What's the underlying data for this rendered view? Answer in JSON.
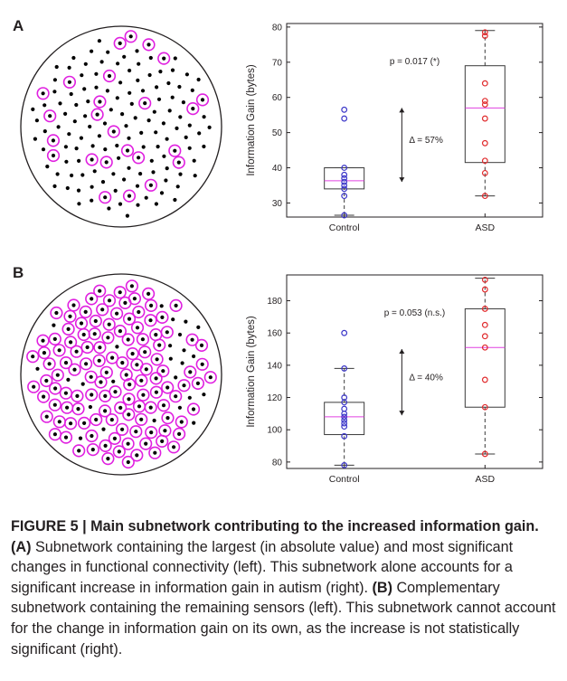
{
  "panels": [
    {
      "letter": "A",
      "chart_data": {
        "type": "box",
        "title": "",
        "xlabel": "",
        "ylabel": "Information Gain (bytes)",
        "ylim": [
          26,
          81
        ],
        "yticks": [
          30,
          40,
          50,
          60,
          70,
          80
        ],
        "categories": [
          "Control",
          "ASD"
        ],
        "colors": {
          "Control": "#3a35c8",
          "ASD": "#e0292b",
          "median": "#e040e0",
          "box": "#3a3a3a"
        },
        "boxes": [
          {
            "group": "Control",
            "whisker_low": 26.5,
            "q1": 34,
            "median": 36.3,
            "q3": 40,
            "whisker_high": 40,
            "points": [
              26.5,
              32,
              34,
              35,
              36,
              37,
              38,
              40,
              54,
              56.5
            ]
          },
          {
            "group": "ASD",
            "whisker_low": 32,
            "q1": 41.5,
            "median": 57,
            "q3": 69,
            "whisker_high": 79,
            "points": [
              32,
              38.5,
              42,
              47,
              54,
              58,
              59,
              64,
              77.5,
              78.5
            ]
          }
        ],
        "annotations": {
          "pvalue": "p = 0.017 (*)",
          "delta": "Δ = 57%",
          "delta_range": [
            36,
            57
          ]
        }
      },
      "network": {
        "highlighted_sensor_count": 30,
        "total_sensor_count": 150
      }
    },
    {
      "letter": "B",
      "chart_data": {
        "type": "box",
        "title": "",
        "xlabel": "",
        "ylabel": "Information Gain (bytes)",
        "ylim": [
          76,
          196
        ],
        "yticks": [
          80,
          100,
          120,
          140,
          160,
          180
        ],
        "categories": [
          "Control",
          "ASD"
        ],
        "colors": {
          "Control": "#3a35c8",
          "ASD": "#e0292b",
          "median": "#e040e0",
          "box": "#3a3a3a"
        },
        "boxes": [
          {
            "group": "Control",
            "whisker_low": 78,
            "q1": 97,
            "median": 108,
            "q3": 117,
            "whisker_high": 138,
            "points": [
              78,
              96,
              102,
              104,
              106,
              108,
              110,
              113,
              117,
              120,
              138,
              160
            ]
          },
          {
            "group": "ASD",
            "whisker_low": 85,
            "q1": 114,
            "median": 151,
            "q3": 175,
            "whisker_high": 194,
            "points": [
              85,
              114,
              131,
              151,
              158,
              165,
              175,
              187,
              193
            ]
          }
        ],
        "annotations": {
          "pvalue": "p = 0.053 (n.s.)",
          "delta": "Δ = 40%",
          "delta_range": [
            109,
            150
          ]
        }
      },
      "network": {
        "highlighted_sensor_count": 120,
        "total_sensor_count": 150
      }
    }
  ],
  "caption": {
    "title": "FIGURE 5 | Main subnetwork contributing to the increased information gain.",
    "a_label": "(A)",
    "a_text": "Subnetwork containing the largest (in absolute value) and most significant changes in functional connectivity (left). This subnetwork alone accounts for a significant increase in information gain in autism (right).",
    "b_label": "(B)",
    "b_text": "Complementary subnetwork containing the remaining sensors (left). This subnetwork cannot account for the change in information gain on its own, as the increase is not statistically significant (right)."
  }
}
